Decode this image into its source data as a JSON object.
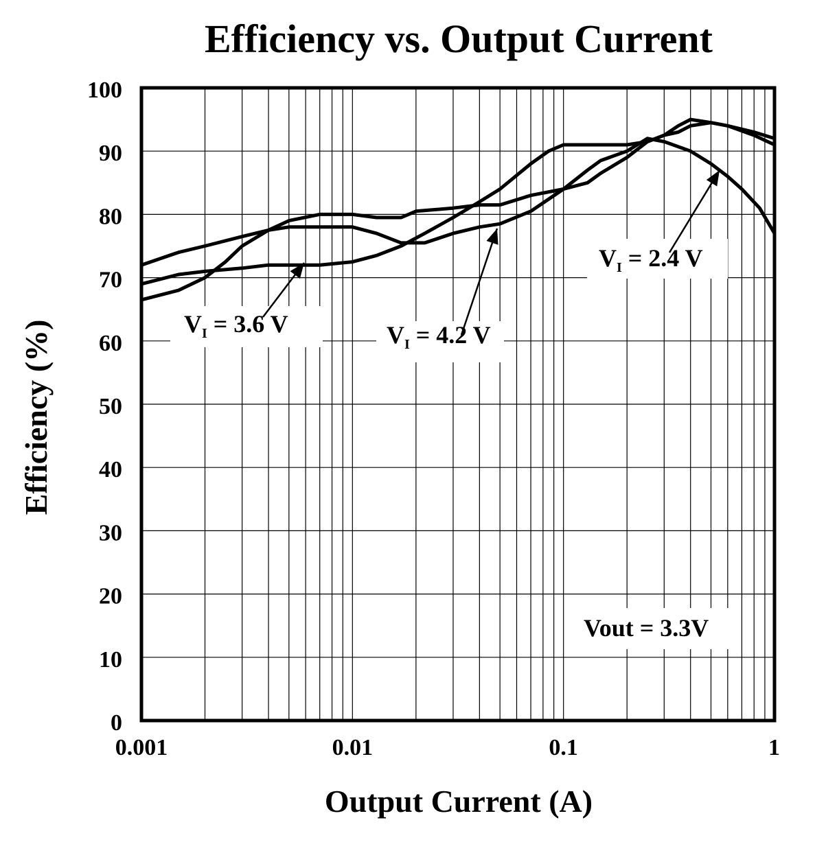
{
  "chart_data": {
    "type": "line",
    "title": "Efficiency vs. Output Current",
    "xlabel": "Output Current (A)",
    "ylabel": "Efficiency (%)",
    "xscale": "log",
    "xlim": [
      0.001,
      1
    ],
    "ylim": [
      0,
      100
    ],
    "x_ticks": [
      {
        "value": 0.001,
        "label": "0.001"
      },
      {
        "value": 0.01,
        "label": "0.01"
      },
      {
        "value": 0.1,
        "label": "0.1"
      },
      {
        "value": 1,
        "label": "1"
      }
    ],
    "y_ticks": [
      {
        "value": 0,
        "label": "0"
      },
      {
        "value": 10,
        "label": "10"
      },
      {
        "value": 20,
        "label": "20"
      },
      {
        "value": 30,
        "label": "30"
      },
      {
        "value": 40,
        "label": "40"
      },
      {
        "value": 50,
        "label": "50"
      },
      {
        "value": 60,
        "label": "60"
      },
      {
        "value": 70,
        "label": "70"
      },
      {
        "value": 80,
        "label": "80"
      },
      {
        "value": 90,
        "label": "90"
      },
      {
        "value": 100,
        "label": "100"
      }
    ],
    "grid": true,
    "series": [
      {
        "name": "VI = 2.4 V",
        "points": [
          [
            0.001,
            72
          ],
          [
            0.0015,
            74
          ],
          [
            0.002,
            75
          ],
          [
            0.003,
            76.5
          ],
          [
            0.004,
            77.5
          ],
          [
            0.005,
            78
          ],
          [
            0.007,
            78
          ],
          [
            0.01,
            78
          ],
          [
            0.013,
            77
          ],
          [
            0.017,
            75.5
          ],
          [
            0.022,
            75.5
          ],
          [
            0.03,
            77
          ],
          [
            0.04,
            78
          ],
          [
            0.05,
            78.5
          ],
          [
            0.07,
            80.5
          ],
          [
            0.1,
            84
          ],
          [
            0.13,
            87
          ],
          [
            0.15,
            88.5
          ],
          [
            0.2,
            90
          ],
          [
            0.25,
            92
          ],
          [
            0.3,
            91.5
          ],
          [
            0.4,
            90
          ],
          [
            0.5,
            88
          ],
          [
            0.6,
            86
          ],
          [
            0.7,
            84
          ],
          [
            0.85,
            81
          ],
          [
            1.0,
            77
          ]
        ]
      },
      {
        "name": "VI = 3.6 V",
        "points": [
          [
            0.001,
            69
          ],
          [
            0.0015,
            70.5
          ],
          [
            0.002,
            71
          ],
          [
            0.003,
            71.5
          ],
          [
            0.004,
            72
          ],
          [
            0.005,
            72
          ],
          [
            0.007,
            72
          ],
          [
            0.01,
            72.5
          ],
          [
            0.013,
            73.5
          ],
          [
            0.017,
            75
          ],
          [
            0.022,
            77
          ],
          [
            0.03,
            79.5
          ],
          [
            0.04,
            82
          ],
          [
            0.05,
            84
          ],
          [
            0.07,
            88
          ],
          [
            0.085,
            90
          ],
          [
            0.1,
            91
          ],
          [
            0.13,
            91
          ],
          [
            0.15,
            91
          ],
          [
            0.2,
            91
          ],
          [
            0.25,
            91.5
          ],
          [
            0.3,
            92.5
          ],
          [
            0.35,
            93
          ],
          [
            0.4,
            94
          ],
          [
            0.5,
            94.5
          ],
          [
            0.6,
            94
          ],
          [
            0.8,
            93
          ],
          [
            1.0,
            92
          ]
        ]
      },
      {
        "name": "VI = 4.2 V",
        "points": [
          [
            0.001,
            66.5
          ],
          [
            0.0015,
            68
          ],
          [
            0.002,
            70
          ],
          [
            0.0025,
            72.5
          ],
          [
            0.003,
            75
          ],
          [
            0.004,
            77.5
          ],
          [
            0.005,
            79
          ],
          [
            0.007,
            80
          ],
          [
            0.01,
            80
          ],
          [
            0.013,
            79.5
          ],
          [
            0.017,
            79.5
          ],
          [
            0.02,
            80.5
          ],
          [
            0.03,
            81
          ],
          [
            0.04,
            81.5
          ],
          [
            0.05,
            81.5
          ],
          [
            0.07,
            83
          ],
          [
            0.1,
            84
          ],
          [
            0.13,
            85
          ],
          [
            0.15,
            86.5
          ],
          [
            0.2,
            89
          ],
          [
            0.25,
            91.5
          ],
          [
            0.3,
            92.5
          ],
          [
            0.35,
            94
          ],
          [
            0.4,
            95
          ],
          [
            0.5,
            94.5
          ],
          [
            0.6,
            94
          ],
          [
            0.8,
            92.5
          ],
          [
            1.0,
            91
          ]
        ]
      }
    ],
    "annotations": [
      {
        "main": "V",
        "sub": "I",
        "rest": " = 2.4 V"
      },
      {
        "main": "V",
        "sub": "I",
        "rest": " = 3.6 V"
      },
      {
        "main": "V",
        "sub": "I",
        "rest": " = 4.2 V"
      },
      {
        "text": "Vout = 3.3V"
      }
    ]
  }
}
